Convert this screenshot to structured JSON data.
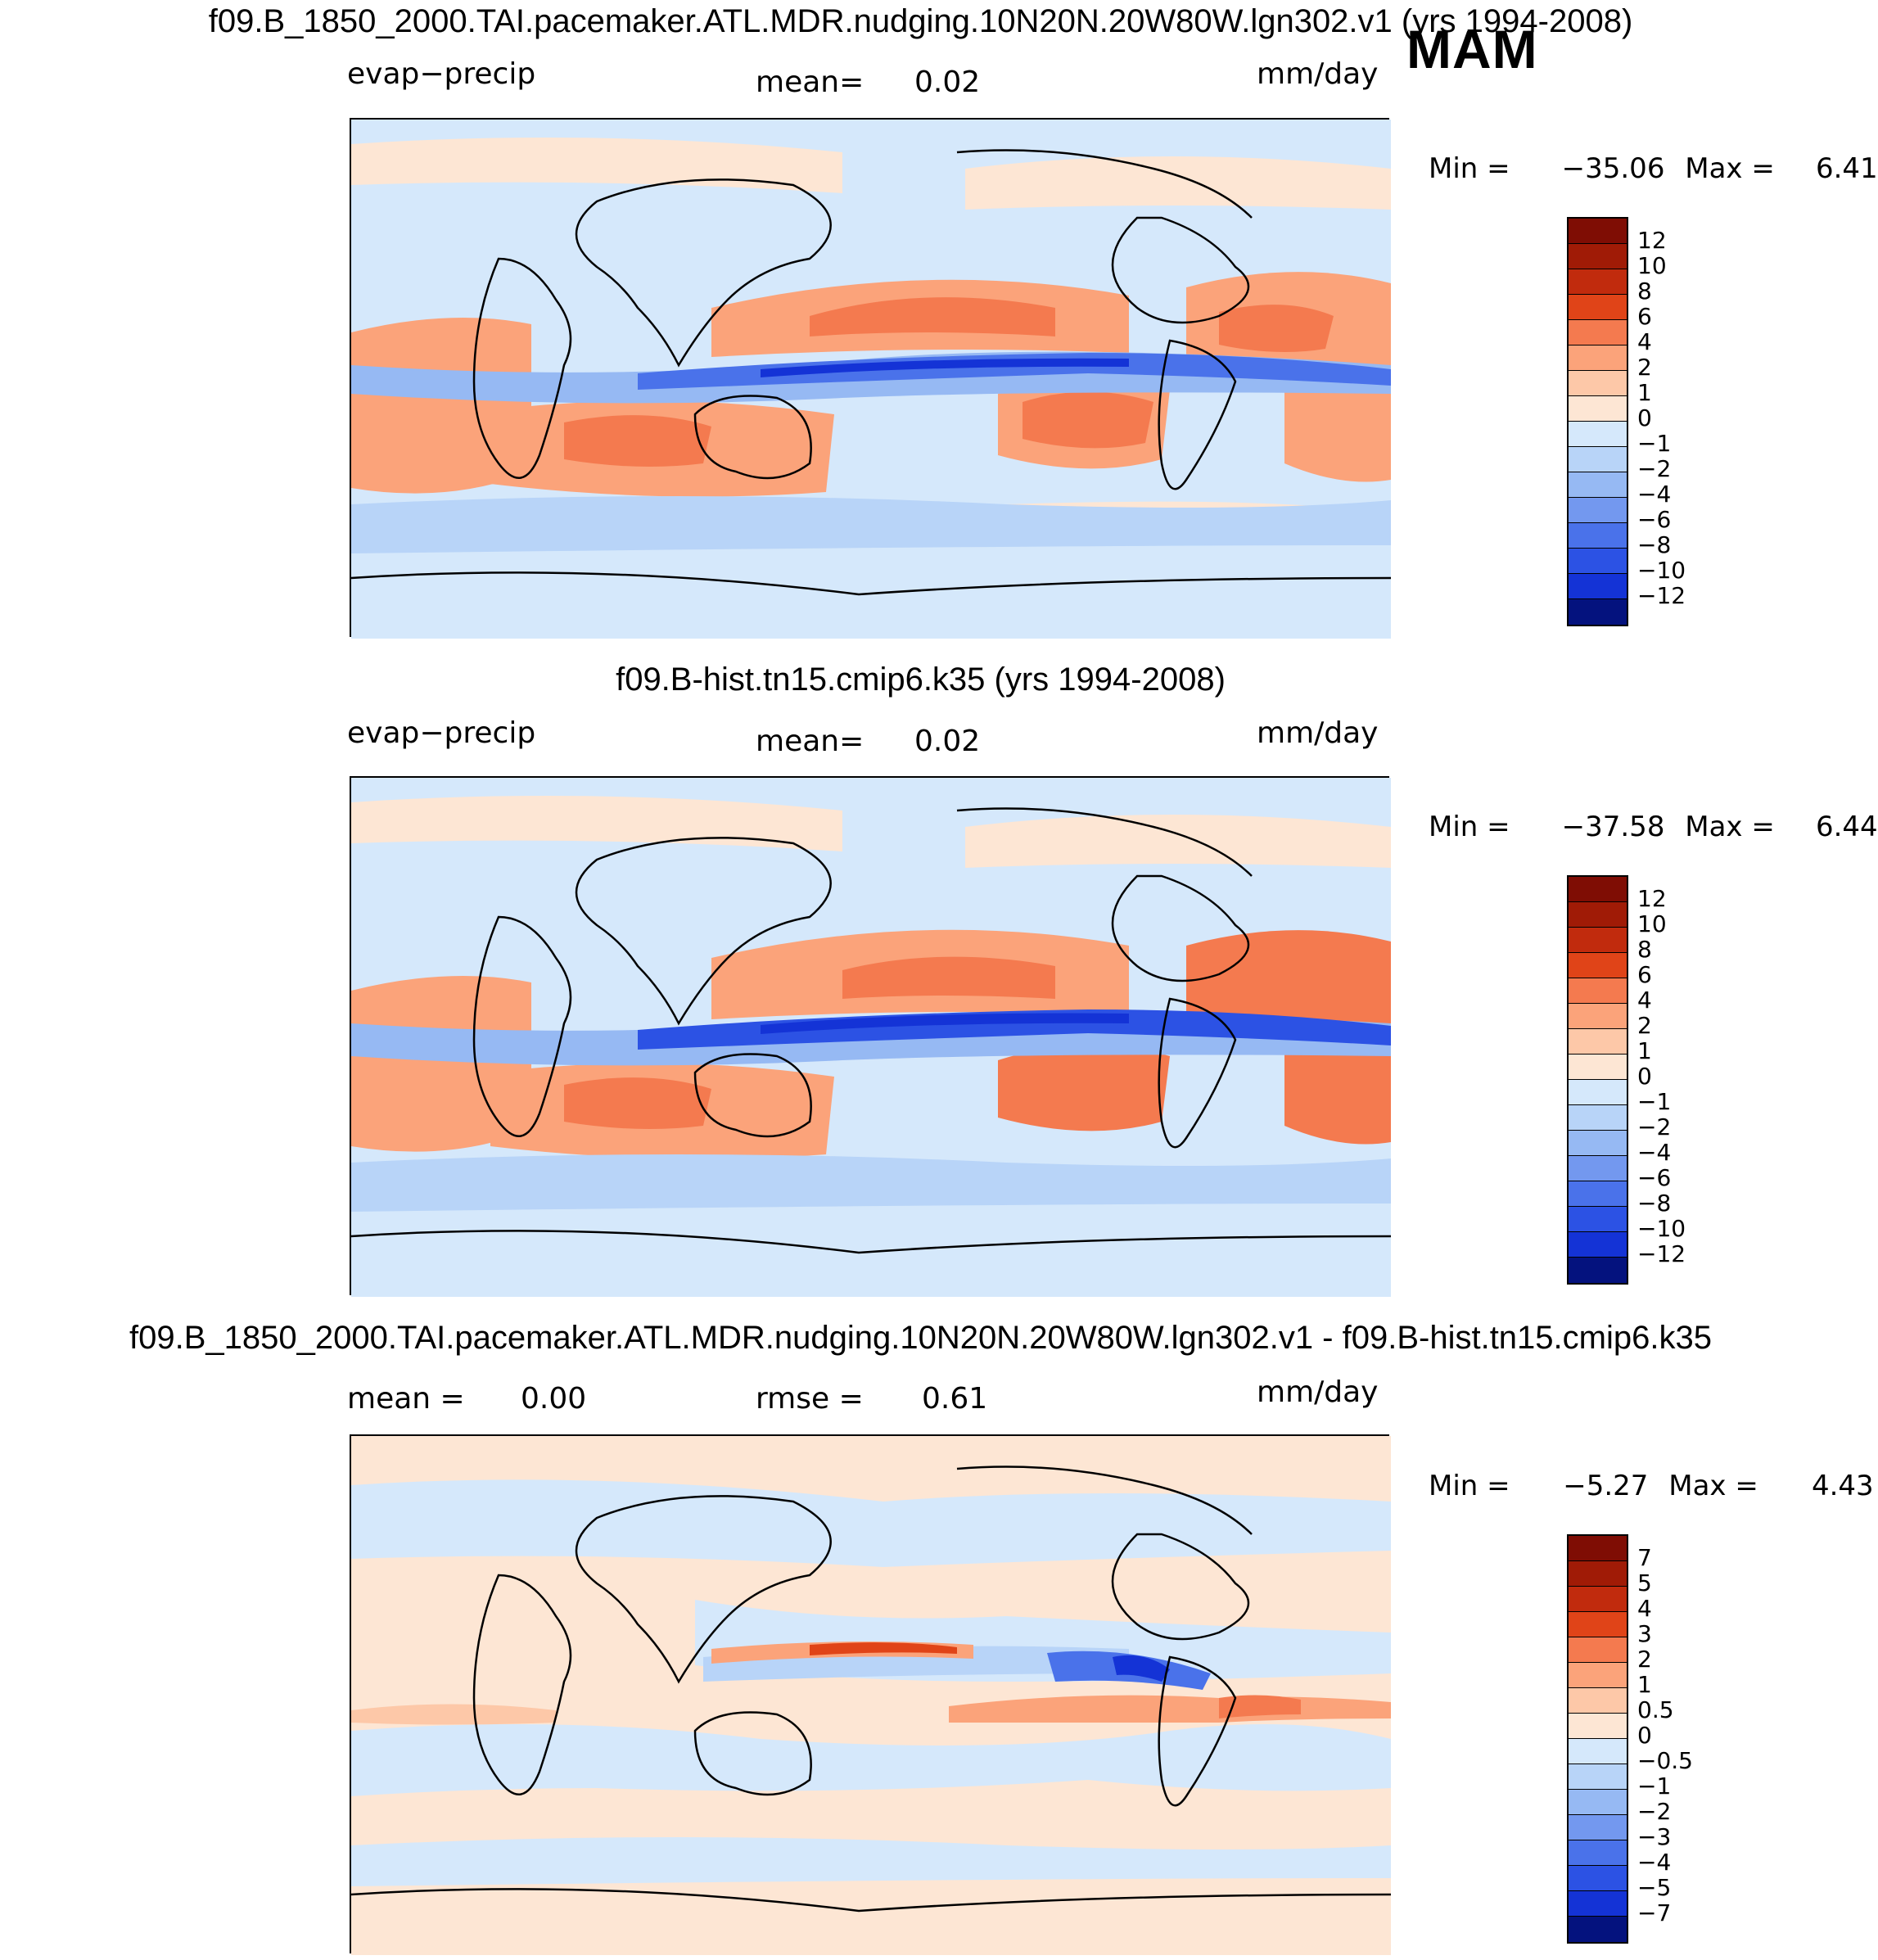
{
  "season": "MAM",
  "colors": {
    "red": [
      "#fde6d4",
      "#fdc8a8",
      "#fba37a",
      "#f47a4f",
      "#ef5a2a",
      "#e04418",
      "#c12b0d",
      "#a01b06",
      "#7f0d04"
    ],
    "blue": [
      "#d5e8fb",
      "#b8d4f8",
      "#96b9f3",
      "#7398ef",
      "#4a72ea",
      "#2c52e4",
      "#1433d6",
      "#0a1fae",
      "#04127e"
    ]
  },
  "panels": [
    {
      "title": "f09.B_1850_2000.TAI.pacemaker.ATL.MDR.nudging.10N20N.20W80W.lgn302.v1 (yrs 1994-2008)",
      "left_label": "evap−precip",
      "mid_label": "mean=",
      "mid_value": "0.02",
      "units": "mm/day",
      "min_label": "Min  =",
      "min_value": "−35.06",
      "max_label": "Max  =",
      "max_value": "6.41",
      "colorbar_labels": [
        "12",
        "10",
        "8",
        "6",
        "4",
        "2",
        "1",
        "0",
        "−1",
        "−2",
        "−4",
        "−6",
        "−8",
        "−10",
        "−12"
      ]
    },
    {
      "title": "f09.B-hist.tn15.cmip6.k35 (yrs 1994-2008)",
      "left_label": "evap−precip",
      "mid_label": "mean=",
      "mid_value": "0.02",
      "units": "mm/day",
      "min_label": "Min  =",
      "min_value": "−37.58",
      "max_label": "Max  =",
      "max_value": "6.44",
      "colorbar_labels": [
        "12",
        "10",
        "8",
        "6",
        "4",
        "2",
        "1",
        "0",
        "−1",
        "−2",
        "−4",
        "−6",
        "−8",
        "−10",
        "−12"
      ]
    },
    {
      "title": "f09.B_1850_2000.TAI.pacemaker.ATL.MDR.nudging.10N20N.20W80W.lgn302.v1 - f09.B-hist.tn15.cmip6.k35",
      "left_label": "mean =",
      "left_value": "0.00",
      "mid_label": "rmse =",
      "mid_value": "0.61",
      "units": "mm/day",
      "min_label": "Min  =",
      "min_value": "−5.27",
      "max_label": "Max  =",
      "max_value": "4.43",
      "colorbar_labels": [
        "7",
        "5",
        "4",
        "3",
        "2",
        "1",
        "0.5",
        "0",
        "−0.5",
        "−1",
        "−2",
        "−3",
        "−4",
        "−5",
        "−7"
      ]
    }
  ]
}
